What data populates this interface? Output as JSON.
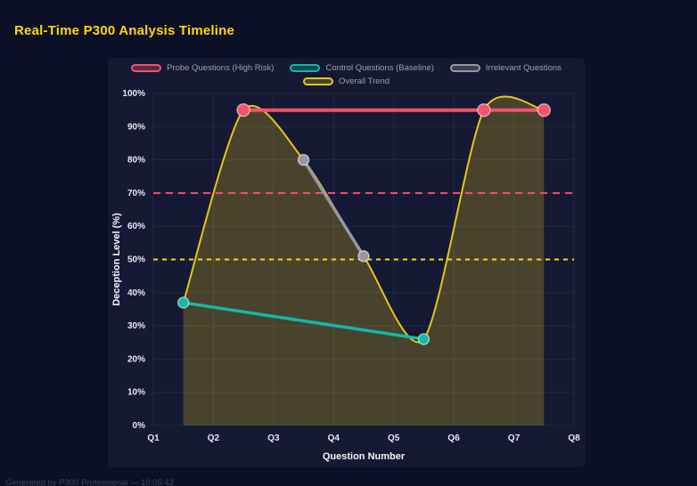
{
  "header": {
    "title": "Real-Time P300 Analysis Timeline"
  },
  "footer": {
    "note": "Generated by P300 Professional — 10:05:42"
  },
  "colors": {
    "background": "#0c1027",
    "panel": "#151933",
    "title": "#ffd60a",
    "grid": "#232947",
    "tick_label": "#e6e9f5",
    "axis_title": "#f2f4fb",
    "legend_label": "#9aa1b6",
    "footer_text": "#3e4462",
    "point_ring": "#ffffff"
  },
  "chart_data": {
    "type": "line",
    "title": "Real-Time P300 Analysis Timeline",
    "xlabel": "Question Number",
    "ylabel": "Deception Level (%)",
    "x_ticks": [
      "Q1",
      "Q2",
      "Q3",
      "Q4",
      "Q5",
      "Q6",
      "Q7",
      "Q8"
    ],
    "y_ticks": [
      "0%",
      "10%",
      "20%",
      "30%",
      "40%",
      "50%",
      "60%",
      "70%",
      "80%",
      "90%",
      "100%"
    ],
    "xlim": [
      1,
      8
    ],
    "ylim": [
      0,
      100
    ],
    "grid": true,
    "legend_position": "top",
    "series": [
      {
        "name": "Probe Questions (High Risk)",
        "color": "#f4536b",
        "style": "line",
        "x": [
          2.5,
          6.5,
          7.5
        ],
        "y": [
          95,
          95,
          95
        ],
        "point_radius": 7,
        "line_width": 4
      },
      {
        "name": "Control Questions (Baseline)",
        "color": "#14b8a6",
        "style": "line",
        "x": [
          1.5,
          5.5
        ],
        "y": [
          37,
          26
        ],
        "point_radius": 6,
        "line_width": 3.5
      },
      {
        "name": "Irrelevant Questions",
        "color": "#94989f",
        "style": "line",
        "x": [
          3.5,
          4.5
        ],
        "y": [
          80,
          51
        ],
        "point_radius": 6,
        "line_width": 3.5
      },
      {
        "name": "Overall Trend",
        "color": "#e7c41b",
        "style": "smooth",
        "fill": true,
        "fill_opacity": 0.25,
        "x": [
          1.5,
          2.5,
          3.5,
          4.5,
          5.5,
          6.5,
          7.5
        ],
        "y": [
          37,
          95,
          80,
          51,
          26,
          95,
          95
        ],
        "point_radius": 0,
        "line_width": 2
      }
    ],
    "reference_lines": [
      {
        "y": 70,
        "color": "#ff4d6d",
        "style": "dashed"
      },
      {
        "y": 50,
        "color": "#ffd60a",
        "style": "dashed"
      }
    ]
  }
}
